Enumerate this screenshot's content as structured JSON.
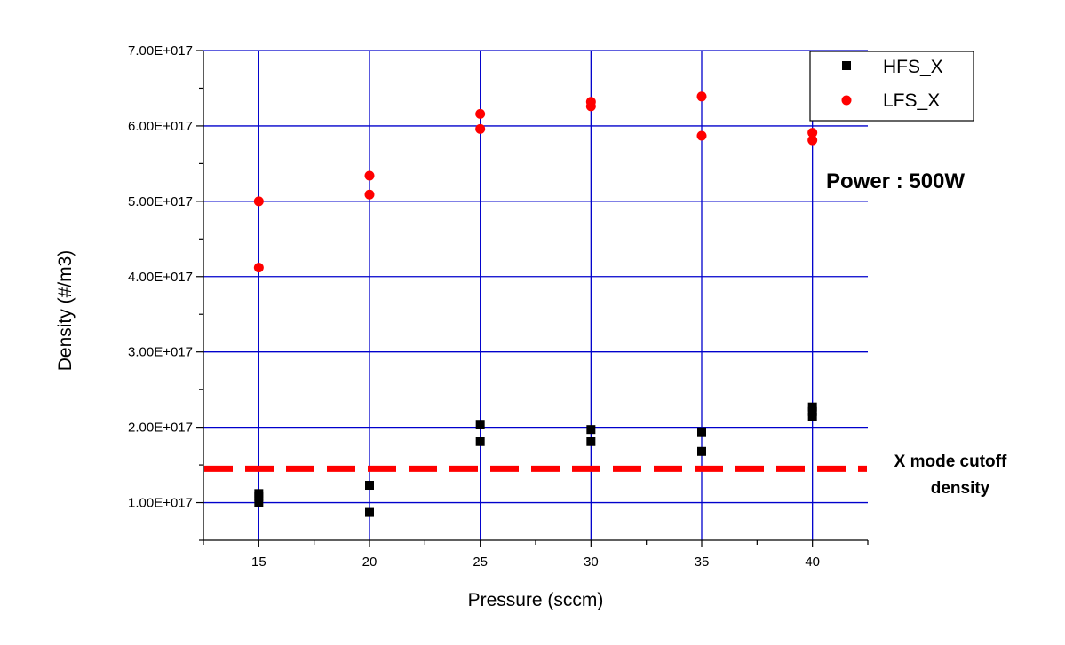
{
  "chart_data": {
    "type": "scatter",
    "title": "",
    "xlabel": "Pressure (sccm)",
    "ylabel": "Density (#/m3)",
    "xlim": [
      12.5,
      42.5
    ],
    "ylim": [
      5e+16,
      7e+17
    ],
    "x_ticks": [
      15,
      20,
      25,
      30,
      35,
      40
    ],
    "x_tick_labels": [
      "15",
      "20",
      "25",
      "30",
      "35",
      "40"
    ],
    "y_ticks": [
      1e+17,
      2e+17,
      3e+17,
      4e+17,
      5e+17,
      6e+17,
      7e+17
    ],
    "y_tick_labels": [
      "1.00E+017",
      "2.00E+017",
      "3.00E+017",
      "4.00E+017",
      "5.00E+017",
      "6.00E+017",
      "7.00E+017"
    ],
    "grid": true,
    "grid_color": "#0000cc",
    "legend_position": "top-right",
    "series": [
      {
        "name": "HFS_X",
        "marker": "square",
        "color": "#000000",
        "points": [
          [
            15,
            1e+17
          ],
          [
            15,
            1.08e+17
          ],
          [
            15,
            1.12e+17
          ],
          [
            20,
            8.7e+16
          ],
          [
            20,
            1.23e+17
          ],
          [
            25,
            1.81e+17
          ],
          [
            25,
            2.04e+17
          ],
          [
            30,
            1.81e+17
          ],
          [
            30,
            1.97e+17
          ],
          [
            35,
            1.68e+17
          ],
          [
            35,
            1.94e+17
          ],
          [
            40,
            2.14e+17
          ],
          [
            40,
            2.21e+17
          ],
          [
            40,
            2.27e+17
          ]
        ]
      },
      {
        "name": "LFS_X",
        "marker": "circle",
        "color": "#ff0000",
        "points": [
          [
            15,
            4.12e+17
          ],
          [
            15,
            5e+17
          ],
          [
            20,
            5.09e+17
          ],
          [
            20,
            5.34e+17
          ],
          [
            25,
            5.96e+17
          ],
          [
            25,
            6.16e+17
          ],
          [
            30,
            6.26e+17
          ],
          [
            30,
            6.32e+17
          ],
          [
            35,
            5.87e+17
          ],
          [
            35,
            6.39e+17
          ],
          [
            40,
            5.81e+17
          ],
          [
            40,
            5.91e+17
          ]
        ]
      }
    ],
    "reference_line": {
      "y": 1.45e+17,
      "color": "#ff0000",
      "style": "dashed",
      "label_line1": "X mode cutoff",
      "label_line2": "density"
    },
    "annotation": "Power : 500W"
  }
}
